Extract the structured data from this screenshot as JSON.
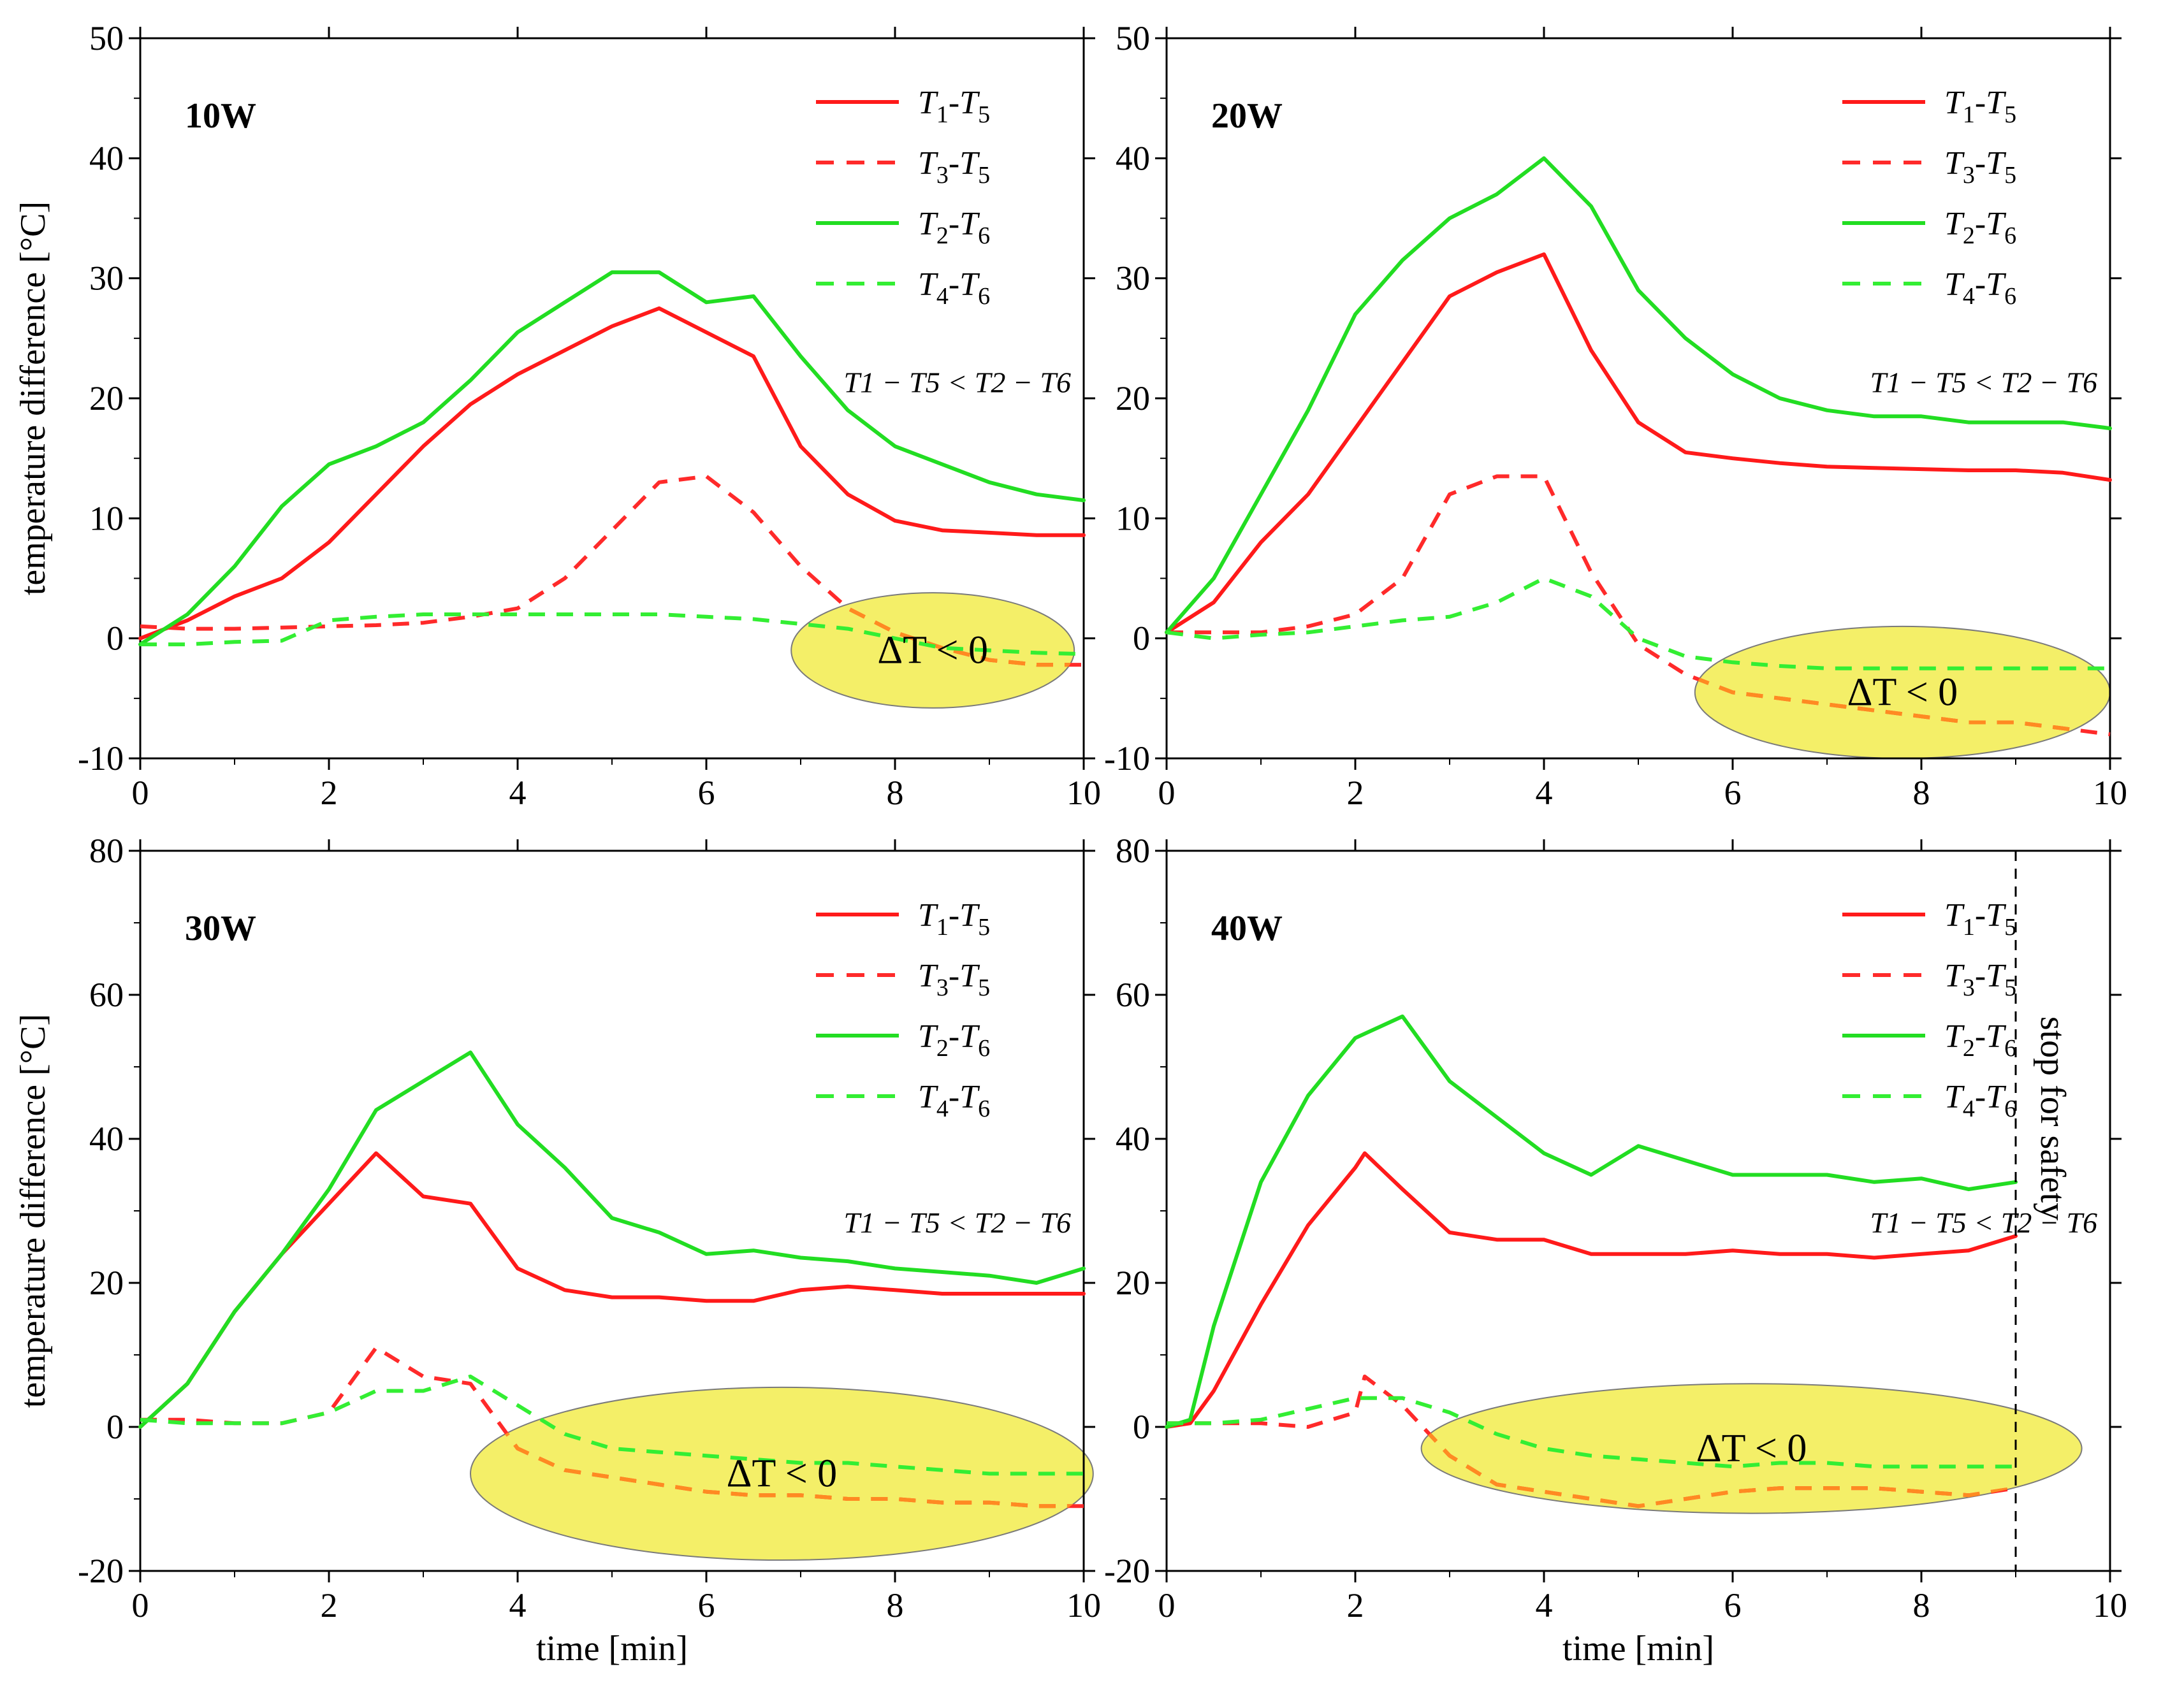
{
  "chart_data": [
    {
      "type": "line",
      "panel": "top-left",
      "title": "10W",
      "xlabel": "",
      "ylabel": "temperature difference [°C]",
      "xlim": [
        0,
        10
      ],
      "ylim": [
        -10,
        50
      ],
      "xticks": [
        0,
        2,
        4,
        6,
        8,
        10
      ],
      "yticks": [
        -10,
        0,
        10,
        20,
        30,
        40,
        50
      ],
      "legend": "top-right",
      "series": [
        {
          "name": "T1-T5",
          "sub": [
            "1",
            "5"
          ],
          "color": "#ff1a1a",
          "style": "solid",
          "x": [
            0,
            0.5,
            1,
            1.5,
            2,
            2.5,
            3,
            3.5,
            4,
            4.5,
            5,
            5.5,
            6,
            6.5,
            7,
            7.5,
            8,
            8.5,
            9,
            9.5,
            10
          ],
          "y": [
            0,
            1.5,
            3.5,
            5,
            8,
            12,
            16,
            19.5,
            22,
            24,
            26,
            27.5,
            25.5,
            23.5,
            16,
            12,
            9.8,
            9,
            8.8,
            8.6,
            8.6
          ]
        },
        {
          "name": "T3-T5",
          "sub": [
            "3",
            "5"
          ],
          "color": "#ff2a2a",
          "style": "dashed",
          "x": [
            0,
            0.5,
            1,
            1.5,
            2,
            2.5,
            3,
            3.5,
            4,
            4.5,
            5,
            5.5,
            6,
            6.5,
            7,
            7.5,
            8,
            8.5,
            9,
            9.5,
            10
          ],
          "y": [
            1,
            0.8,
            0.8,
            0.9,
            1,
            1.1,
            1.3,
            1.8,
            2.5,
            5,
            9,
            13,
            13.5,
            10.5,
            6,
            2.5,
            0.5,
            -0.8,
            -1.8,
            -2.2,
            -2.2
          ]
        },
        {
          "name": "T2-T6",
          "sub": [
            "2",
            "6"
          ],
          "color": "#22dd22",
          "style": "solid",
          "x": [
            0,
            0.5,
            1,
            1.5,
            2,
            2.5,
            3,
            3.5,
            4,
            4.5,
            5,
            5.5,
            6,
            6.5,
            7,
            7.5,
            8,
            8.5,
            9,
            9.5,
            10
          ],
          "y": [
            -0.5,
            2,
            6,
            11,
            14.5,
            16,
            18,
            21.5,
            25.5,
            28,
            30.5,
            30.5,
            28,
            28.5,
            23.5,
            19,
            16,
            14.5,
            13,
            12,
            11.5
          ]
        },
        {
          "name": "T4-T6",
          "sub": [
            "4",
            "6"
          ],
          "color": "#33ee33",
          "style": "dashed",
          "x": [
            0,
            0.5,
            1,
            1.5,
            2,
            2.5,
            3,
            3.5,
            4,
            4.5,
            5,
            5.5,
            6,
            6.5,
            7,
            7.5,
            8,
            8.5,
            9,
            9.5,
            10
          ],
          "y": [
            -0.5,
            -0.5,
            -0.3,
            -0.2,
            1.5,
            1.8,
            2,
            2,
            2,
            2,
            2,
            2,
            1.8,
            1.6,
            1.2,
            0.8,
            0,
            -0.8,
            -1,
            -1.2,
            -1.3
          ]
        }
      ],
      "annotations": {
        "inequality": "T1 − T5 < T2 − T6",
        "delta": "ΔT < 0"
      },
      "ellipse": {
        "cx": 8.4,
        "cy": -1,
        "rx": 1.5,
        "ry": 4.8
      }
    },
    {
      "type": "line",
      "panel": "top-right",
      "title": "20W",
      "xlabel": "",
      "ylabel": "",
      "xlim": [
        0,
        10
      ],
      "ylim": [
        -10,
        50
      ],
      "xticks": [
        0,
        2,
        4,
        6,
        8,
        10
      ],
      "yticks": [
        -10,
        0,
        10,
        20,
        30,
        40,
        50
      ],
      "legend": "top-right",
      "series": [
        {
          "name": "T1-T5",
          "sub": [
            "1",
            "5"
          ],
          "color": "#ff1a1a",
          "style": "solid",
          "x": [
            0,
            0.5,
            1,
            1.5,
            2,
            2.5,
            3,
            3.5,
            4,
            4.5,
            5,
            5.5,
            6,
            6.5,
            7,
            7.5,
            8,
            8.5,
            9,
            9.5,
            10
          ],
          "y": [
            0.5,
            3,
            8,
            12,
            17.5,
            23,
            28.5,
            30.5,
            32,
            24,
            18,
            15.5,
            15,
            14.6,
            14.3,
            14.2,
            14.1,
            14,
            14,
            13.8,
            13.2
          ]
        },
        {
          "name": "T3-T5",
          "sub": [
            "3",
            "5"
          ],
          "color": "#ff2a2a",
          "style": "dashed",
          "x": [
            0,
            0.5,
            1,
            1.5,
            2,
            2.5,
            3,
            3.5,
            4,
            4.5,
            5,
            5.5,
            6,
            6.5,
            7,
            7.5,
            8,
            8.5,
            9,
            9.5,
            10
          ],
          "y": [
            0.5,
            0.5,
            0.5,
            1,
            2,
            5,
            12,
            13.5,
            13.5,
            5.5,
            -0.5,
            -3,
            -4.5,
            -5,
            -5.5,
            -6,
            -6.5,
            -7,
            -7,
            -7.5,
            -8
          ]
        },
        {
          "name": "T2-T6",
          "sub": [
            "2",
            "6"
          ],
          "color": "#22dd22",
          "style": "solid",
          "x": [
            0,
            0.5,
            1,
            1.5,
            2,
            2.5,
            3,
            3.5,
            4,
            4.5,
            5,
            5.5,
            6,
            6.5,
            7,
            7.5,
            8,
            8.5,
            9,
            9.5,
            10
          ],
          "y": [
            0.5,
            5,
            12,
            19,
            27,
            31.5,
            35,
            37,
            40,
            36,
            29,
            25,
            22,
            20,
            19,
            18.5,
            18.5,
            18,
            18,
            18,
            17.5
          ]
        },
        {
          "name": "T4-T6",
          "sub": [
            "4",
            "6"
          ],
          "color": "#33ee33",
          "style": "dashed",
          "x": [
            0,
            0.5,
            1,
            1.5,
            2,
            2.5,
            3,
            3.5,
            4,
            4.5,
            5,
            5.5,
            6,
            6.5,
            7,
            7.5,
            8,
            8.5,
            9,
            9.5,
            10
          ],
          "y": [
            0.5,
            0,
            0.3,
            0.5,
            1,
            1.5,
            1.8,
            3,
            5,
            3.5,
            0,
            -1.5,
            -2,
            -2.3,
            -2.5,
            -2.5,
            -2.5,
            -2.5,
            -2.5,
            -2.5,
            -2.5
          ]
        }
      ],
      "annotations": {
        "inequality": "T1 − T5 < T2 − T6",
        "delta": "ΔT < 0"
      },
      "ellipse": {
        "cx": 7.8,
        "cy": -4.5,
        "rx": 2.2,
        "ry": 5.5
      }
    },
    {
      "type": "line",
      "panel": "bottom-left",
      "title": "30W",
      "xlabel": "time [min]",
      "ylabel": "temperature difference [°C]",
      "xlim": [
        0,
        10
      ],
      "ylim": [
        -20,
        80
      ],
      "xticks": [
        0,
        2,
        4,
        6,
        8,
        10
      ],
      "yticks": [
        -20,
        0,
        20,
        40,
        60,
        80
      ],
      "legend": "top-right",
      "series": [
        {
          "name": "T1-T5",
          "sub": [
            "1",
            "5"
          ],
          "color": "#ff1a1a",
          "style": "solid",
          "x": [
            0,
            0.5,
            1,
            1.5,
            2,
            2.5,
            3,
            3.5,
            4,
            4.5,
            5,
            5.5,
            6,
            6.5,
            7,
            7.5,
            8,
            8.5,
            9,
            9.5,
            10
          ],
          "y": [
            0,
            6,
            16,
            24,
            31,
            38,
            32,
            31,
            22,
            19,
            18,
            18,
            17.5,
            17.5,
            19,
            19.5,
            19,
            18.5,
            18.5,
            18.5,
            18.5
          ]
        },
        {
          "name": "T3-T5",
          "sub": [
            "3",
            "5"
          ],
          "color": "#ff2a2a",
          "style": "dashed",
          "x": [
            0,
            0.5,
            1,
            1.5,
            2,
            2.5,
            3,
            3.5,
            4,
            4.5,
            5,
            5.5,
            6,
            6.5,
            7,
            7.5,
            8,
            8.5,
            9,
            9.5,
            10
          ],
          "y": [
            1,
            1,
            0.5,
            0.5,
            2,
            11,
            7,
            6,
            -3,
            -6,
            -7,
            -8,
            -9,
            -9.5,
            -9.5,
            -10,
            -10,
            -10.5,
            -10.5,
            -11,
            -11
          ]
        },
        {
          "name": "T2-T6",
          "sub": [
            "2",
            "6"
          ],
          "color": "#22dd22",
          "style": "solid",
          "x": [
            0,
            0.5,
            1,
            1.5,
            2,
            2.5,
            3,
            3.5,
            4,
            4.5,
            5,
            5.5,
            6,
            6.5,
            7,
            7.5,
            8,
            8.5,
            9,
            9.5,
            10
          ],
          "y": [
            0,
            6,
            16,
            24,
            33,
            44,
            48,
            52,
            42,
            36,
            29,
            27,
            24,
            24.5,
            23.5,
            23,
            22,
            21.5,
            21,
            20,
            22
          ]
        },
        {
          "name": "T4-T6",
          "sub": [
            "4",
            "6"
          ],
          "color": "#33ee33",
          "style": "dashed",
          "x": [
            0,
            0.5,
            1,
            1.5,
            2,
            2.5,
            3,
            3.5,
            4,
            4.5,
            5,
            5.5,
            6,
            6.5,
            7,
            7.5,
            8,
            8.5,
            9,
            9.5,
            10
          ],
          "y": [
            1,
            0.5,
            0.5,
            0.5,
            2,
            5,
            5,
            7,
            3,
            -1,
            -3,
            -3.5,
            -4,
            -4.5,
            -5,
            -5,
            -5.5,
            -6,
            -6.5,
            -6.5,
            -6.5
          ]
        }
      ],
      "annotations": {
        "inequality": "T1 − T5 < T2 − T6",
        "delta": "ΔT < 0"
      },
      "ellipse": {
        "cx": 6.8,
        "cy": -6.5,
        "rx": 3.3,
        "ry": 12
      }
    },
    {
      "type": "line",
      "panel": "bottom-right",
      "title": "40W",
      "xlabel": "time [min]",
      "ylabel": "",
      "xlim": [
        0,
        10
      ],
      "ylim": [
        -20,
        80
      ],
      "xticks": [
        0,
        2,
        4,
        6,
        8,
        10
      ],
      "yticks": [
        -20,
        0,
        20,
        40,
        60,
        80
      ],
      "legend": "top-right",
      "series": [
        {
          "name": "T1-T5",
          "sub": [
            "1",
            "5"
          ],
          "color": "#ff1a1a",
          "style": "solid",
          "x": [
            0,
            0.25,
            0.5,
            1,
            1.5,
            2,
            2.1,
            2.5,
            3,
            3.5,
            4,
            4.5,
            5,
            5.5,
            6,
            6.5,
            7,
            7.5,
            8,
            8.5,
            9
          ],
          "y": [
            0,
            0.5,
            5,
            17,
            28,
            36,
            38,
            33,
            27,
            26,
            26,
            24,
            24,
            24,
            24.5,
            24,
            24,
            23.5,
            24,
            24.5,
            26.5
          ]
        },
        {
          "name": "T3-T5",
          "sub": [
            "3",
            "5"
          ],
          "color": "#ff2a2a",
          "style": "dashed",
          "x": [
            0,
            0.5,
            1,
            1.5,
            2,
            2.1,
            2.5,
            3,
            3.5,
            4,
            4.5,
            5,
            5.5,
            6,
            6.5,
            7,
            7.5,
            8,
            8.5,
            9
          ],
          "y": [
            0.5,
            0.5,
            0.5,
            0,
            2,
            7,
            3,
            -4,
            -8,
            -9,
            -10,
            -11,
            -10,
            -9,
            -8.5,
            -8.5,
            -8.5,
            -9,
            -9.5,
            -8.5
          ]
        },
        {
          "name": "T2-T6",
          "sub": [
            "2",
            "6"
          ],
          "color": "#22dd22",
          "style": "solid",
          "x": [
            0,
            0.25,
            0.5,
            1,
            1.5,
            2,
            2.5,
            3,
            3.5,
            4,
            4.5,
            5,
            5.5,
            6,
            6.5,
            7,
            7.5,
            8,
            8.5,
            9
          ],
          "y": [
            0,
            1,
            14,
            34,
            46,
            54,
            57,
            48,
            43,
            38,
            35,
            39,
            37,
            35,
            35,
            35,
            34,
            34.5,
            33,
            34
          ]
        },
        {
          "name": "T4-T6",
          "sub": [
            "4",
            "6"
          ],
          "color": "#33ee33",
          "style": "dashed",
          "x": [
            0,
            0.5,
            1,
            1.5,
            2,
            2.5,
            3,
            3.5,
            4,
            4.5,
            5,
            5.5,
            6,
            6.5,
            7,
            7.5,
            8,
            8.5,
            9
          ],
          "y": [
            0.5,
            0.5,
            1,
            2.5,
            4,
            4,
            2,
            -1,
            -3,
            -4,
            -4.5,
            -5,
            -5.5,
            -5,
            -5,
            -5.5,
            -5.5,
            -5.5,
            -5.5
          ]
        }
      ],
      "annotations": {
        "inequality": "T1 − T5 < T2 − T6",
        "delta": "ΔT < 0",
        "stop": "stop for safety"
      },
      "stop_x": 9,
      "ellipse": {
        "cx": 6.2,
        "cy": -3,
        "rx": 3.5,
        "ry": 9
      }
    }
  ],
  "colors": {
    "ellipse_fill": "#f2ec4e",
    "ellipse_stroke": "#7a7a7a",
    "overlap_dash": "#ff8a22"
  }
}
